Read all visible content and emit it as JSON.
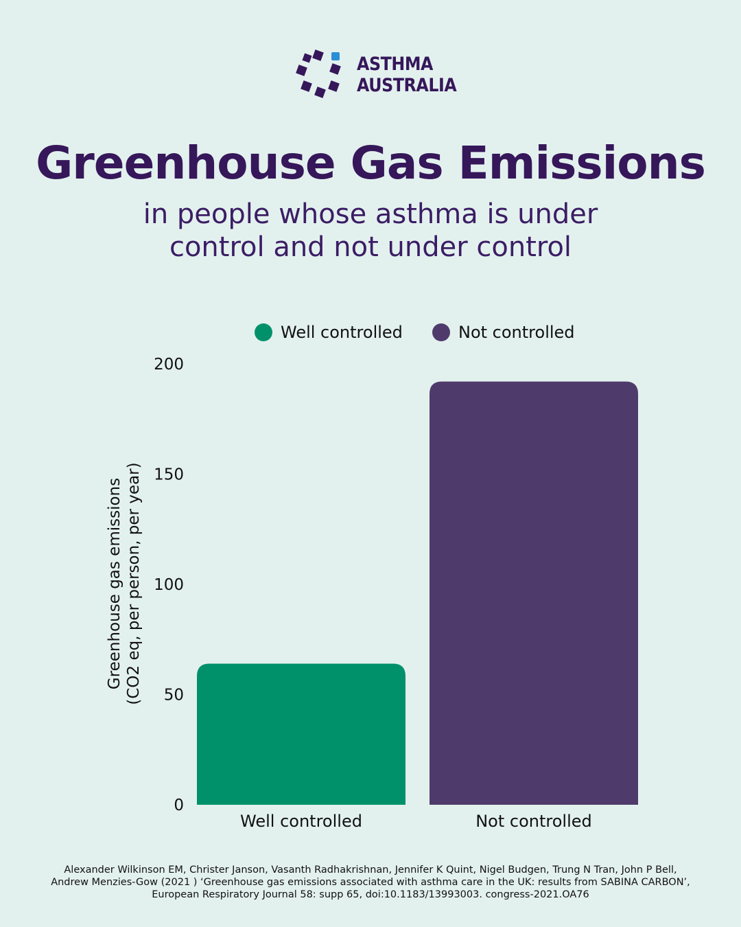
{
  "brand": {
    "name_line1": "ASTHMA",
    "name_line2": "AUSTRALIA",
    "accent_color": "#2a8fd6",
    "primary_color": "#36175a"
  },
  "header": {
    "title": "Greenhouse Gas Emissions",
    "subtitle": "in people whose asthma is under control and not under control"
  },
  "legend": {
    "items": [
      {
        "label": "Well controlled",
        "color": "#00916b"
      },
      {
        "label": "Not controlled",
        "color": "#4f3b6b"
      }
    ]
  },
  "chart_data": {
    "type": "bar",
    "categories": [
      "Well controlled",
      "Not controlled"
    ],
    "values": [
      64,
      192
    ],
    "colors": [
      "#00916b",
      "#4f3b6b"
    ],
    "title": "Greenhouse Gas Emissions",
    "xlabel": "",
    "ylabel_line1": "Greenhouse gas emissions",
    "ylabel_line2": "(CO2 eq, per person, per year)",
    "ylim": [
      0,
      200
    ],
    "yticks": [
      0,
      50,
      100,
      150,
      200
    ],
    "grid": false,
    "legend_position": "top"
  },
  "footnote": "Alexander Wilkinson EM, Christer Janson, Vasanth Radhakrishnan, Jennifer K Quint, Nigel Budgen, Trung N Tran, John P Bell, Andrew Menzies-Gow (2021 ) ‘Greenhouse gas emissions associated with asthma care in the UK: results from SABINA CARBON’, European Respiratory Journal 58: supp 65, doi:10.1183/13993003. congress-2021.OA76"
}
